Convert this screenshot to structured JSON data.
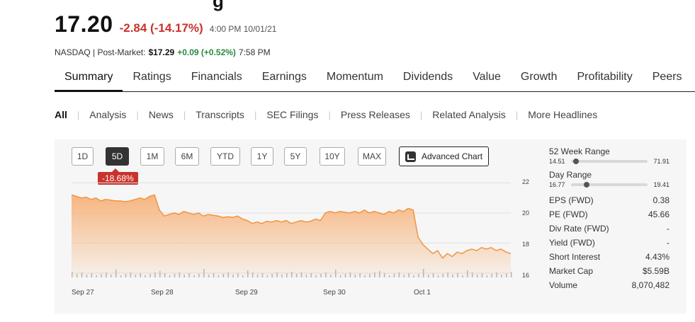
{
  "header": {
    "title_fragment": "g",
    "price": "17.20",
    "change": "-2.84 (-14.17%)",
    "timestamp": "4:00 PM 10/01/21",
    "exchange": "NASDAQ | Post-Market:",
    "post_price": "$17.29",
    "post_change": "+0.09 (+0.52%)",
    "post_time": "7:58 PM"
  },
  "tabs": [
    "Summary",
    "Ratings",
    "Financials",
    "Earnings",
    "Momentum",
    "Dividends",
    "Value",
    "Growth",
    "Profitability",
    "Peers"
  ],
  "filters": [
    "All",
    "Analysis",
    "News",
    "Transcripts",
    "SEC Filings",
    "Press Releases",
    "Related Analysis",
    "More Headlines"
  ],
  "chart_controls": {
    "ranges": [
      "1D",
      "5D",
      "1M",
      "6M",
      "YTD",
      "1Y",
      "5Y",
      "10Y",
      "MAX"
    ],
    "selected": "5D",
    "advanced_label": "Advanced Chart",
    "performance_badge": "-18.68%"
  },
  "chart_data": {
    "type": "area",
    "x_labels": [
      "Sep 27",
      "Sep 28",
      "Sep 29",
      "Sep 30",
      "Oct 1"
    ],
    "y_ticks": [
      "22",
      "20",
      "18",
      "16"
    ],
    "ylim": [
      16,
      22.3
    ],
    "price_series": [
      21.2,
      21.1,
      21.0,
      21.05,
      20.9,
      21.0,
      20.8,
      20.9,
      20.85,
      20.8,
      20.8,
      20.75,
      20.8,
      20.9,
      21.0,
      20.9,
      21.1,
      21.2,
      20.2,
      19.8,
      19.9,
      20.0,
      19.9,
      20.1,
      20.0,
      19.9,
      20.0,
      19.8,
      19.9,
      19.85,
      19.8,
      19.7,
      19.75,
      19.7,
      19.8,
      19.6,
      19.5,
      19.3,
      19.4,
      19.3,
      19.45,
      19.4,
      19.5,
      19.4,
      19.5,
      19.3,
      19.4,
      19.5,
      19.4,
      19.45,
      19.6,
      19.5,
      20.0,
      20.1,
      20.0,
      20.1,
      20.05,
      20.0,
      20.1,
      20.0,
      20.2,
      20.0,
      20.1,
      20.0,
      19.9,
      20.1,
      20.0,
      20.2,
      20.1,
      20.3,
      20.2,
      18.4,
      17.9,
      17.6,
      17.3,
      17.5,
      17.0,
      17.3,
      17.1,
      17.4,
      17.3,
      17.5,
      17.6,
      17.5,
      17.7,
      17.6,
      17.7,
      17.5,
      17.6,
      17.4,
      17.3
    ],
    "volume_level": "low"
  },
  "stats": {
    "week52": {
      "label": "52 Week Range",
      "low": "14.51",
      "high": "71.91",
      "position": 0.03
    },
    "day": {
      "label": "Day Range",
      "low": "16.77",
      "high": "19.41",
      "position": 0.17
    },
    "rows": [
      {
        "label": "EPS (FWD)",
        "value": "0.38"
      },
      {
        "label": "PE (FWD)",
        "value": "45.66"
      },
      {
        "label": "Div Rate (FWD)",
        "value": "-"
      },
      {
        "label": "Yield (FWD)",
        "value": "-"
      },
      {
        "label": "Short Interest",
        "value": "4.43%"
      },
      {
        "label": "Market Cap",
        "value": "$5.59B"
      },
      {
        "label": "Volume",
        "value": "8,070,482"
      }
    ]
  },
  "colors": {
    "accent_negative": "#c8332d",
    "accent_positive": "#2a8a3e",
    "chart_line": "#f29440",
    "chart_fill": "#f7b27a"
  }
}
